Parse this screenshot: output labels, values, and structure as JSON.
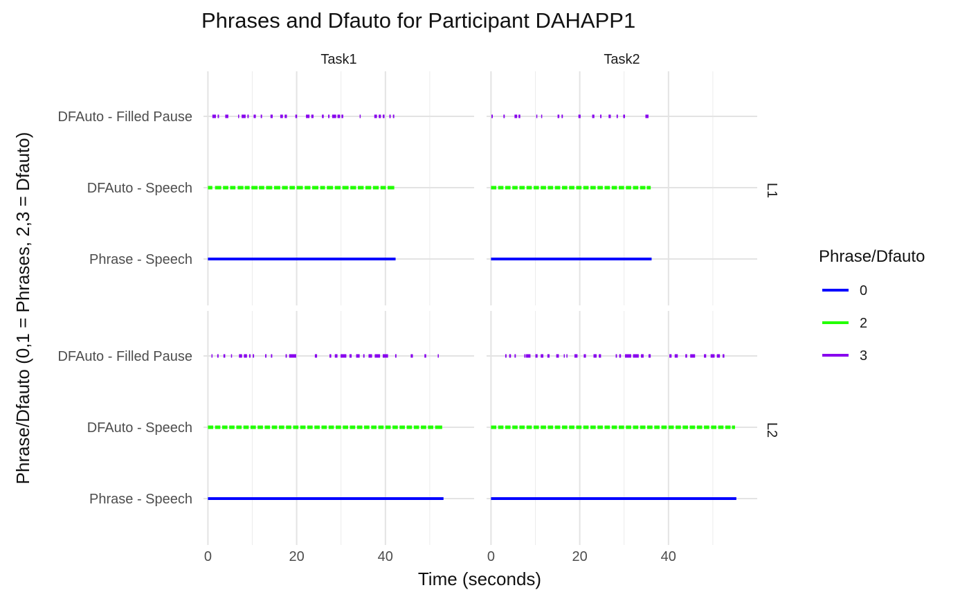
{
  "chart_data": {
    "type": "line",
    "title": "Phrases and Dfauto for Participant DAHAPP1",
    "xlabel": "Time (seconds)",
    "ylabel": "Phrase/Dfauto (0,1 = Phrases, 2,3 = Dfauto)",
    "xlim": [
      -1,
      60
    ],
    "x_ticks": [
      0,
      20,
      40
    ],
    "x_minor": [
      10,
      30,
      50
    ],
    "y_categories": [
      "Phrase - Speech",
      "DFAuto - Speech",
      "DFAuto - Filled Pause"
    ],
    "facet_columns": [
      "Task1",
      "Task2"
    ],
    "facet_rows": [
      "L1",
      "L2"
    ],
    "grid": true,
    "legend": {
      "title": "Phrase/Dfauto",
      "position": "right",
      "items": [
        {
          "label": "0",
          "color": "#0000FF"
        },
        {
          "label": "2",
          "color": "#22FF00"
        },
        {
          "label": "3",
          "color": "#8800EE"
        }
      ]
    },
    "panels": [
      {
        "column": "Task1",
        "row": "L1",
        "phrase_speech": [
          [
            0,
            42.3
          ]
        ],
        "dfauto_speech": [
          [
            0.0,
            1.0
          ],
          [
            1.6,
            3.0
          ],
          [
            3.4,
            4.6
          ],
          [
            5.0,
            6.2
          ],
          [
            6.7,
            8.0
          ],
          [
            8.3,
            9.4
          ],
          [
            9.8,
            11.2
          ],
          [
            11.5,
            12.7
          ],
          [
            13.1,
            14.5
          ],
          [
            14.9,
            16.3
          ],
          [
            16.7,
            18.0
          ],
          [
            18.4,
            19.6
          ],
          [
            20.0,
            21.4
          ],
          [
            21.8,
            23.1
          ],
          [
            23.5,
            24.9
          ],
          [
            25.3,
            26.4
          ],
          [
            26.8,
            28.2
          ],
          [
            28.6,
            29.9
          ],
          [
            30.3,
            31.7
          ],
          [
            32.1,
            33.4
          ],
          [
            33.8,
            35.1
          ],
          [
            35.5,
            36.8
          ],
          [
            37.2,
            38.5
          ],
          [
            38.9,
            40.1
          ],
          [
            40.5,
            42.0
          ]
        ],
        "dfauto_filled": [
          [
            1.0,
            1.8
          ],
          [
            2.2,
            2.5
          ],
          [
            3.9,
            4.6
          ],
          [
            6.8,
            7.0
          ],
          [
            7.6,
            8.5
          ],
          [
            8.9,
            9.2
          ],
          [
            10.3,
            10.8
          ],
          [
            11.9,
            12.2
          ],
          [
            14.1,
            14.6
          ],
          [
            16.3,
            16.9
          ],
          [
            17.3,
            17.8
          ],
          [
            19.7,
            20.1
          ],
          [
            22.1,
            22.9
          ],
          [
            23.3,
            23.8
          ],
          [
            25.7,
            26.1
          ],
          [
            27.1,
            27.4
          ],
          [
            28.0,
            28.9
          ],
          [
            29.2,
            29.8
          ],
          [
            30.1,
            30.5
          ],
          [
            34.2,
            34.4
          ],
          [
            37.5,
            38.1
          ],
          [
            38.5,
            39.0
          ],
          [
            39.4,
            39.8
          ],
          [
            40.9,
            41.2
          ],
          [
            41.7,
            42.0
          ]
        ]
      },
      {
        "column": "Task2",
        "row": "L1",
        "phrase_speech": [
          [
            0,
            36.2
          ]
        ],
        "dfauto_speech": [
          [
            0.0,
            1.2
          ],
          [
            1.6,
            2.8
          ],
          [
            3.2,
            4.4
          ],
          [
            4.8,
            6.0
          ],
          [
            6.4,
            7.6
          ],
          [
            8.0,
            9.2
          ],
          [
            9.6,
            10.8
          ],
          [
            11.2,
            12.4
          ],
          [
            12.8,
            14.0
          ],
          [
            14.4,
            15.6
          ],
          [
            16.0,
            17.2
          ],
          [
            17.6,
            18.8
          ],
          [
            19.2,
            20.4
          ],
          [
            20.8,
            22.0
          ],
          [
            22.4,
            23.6
          ],
          [
            24.0,
            25.2
          ],
          [
            25.6,
            26.8
          ],
          [
            27.2,
            28.4
          ],
          [
            28.8,
            30.0
          ],
          [
            30.4,
            31.6
          ],
          [
            32.0,
            33.2
          ],
          [
            33.6,
            34.8
          ],
          [
            35.1,
            36.0
          ]
        ],
        "dfauto_filled": [
          [
            0.1,
            0.4
          ],
          [
            2.8,
            3.1
          ],
          [
            5.3,
            5.9
          ],
          [
            6.2,
            6.6
          ],
          [
            10.2,
            10.4
          ],
          [
            11.3,
            11.5
          ],
          [
            15.0,
            15.4
          ],
          [
            15.9,
            16.2
          ],
          [
            19.7,
            20.2
          ],
          [
            22.8,
            23.3
          ],
          [
            24.6,
            24.9
          ],
          [
            26.5,
            27.0
          ],
          [
            28.3,
            28.6
          ],
          [
            29.8,
            30.2
          ],
          [
            34.8,
            35.5
          ]
        ]
      },
      {
        "column": "Task1",
        "row": "L2",
        "phrase_speech": [
          [
            0,
            53.1
          ]
        ],
        "dfauto_speech": [
          [
            0.0,
            1.2
          ],
          [
            1.6,
            2.8
          ],
          [
            3.2,
            4.4
          ],
          [
            4.8,
            6.0
          ],
          [
            6.4,
            7.6
          ],
          [
            8.0,
            9.2
          ],
          [
            9.6,
            10.8
          ],
          [
            11.2,
            12.4
          ],
          [
            12.8,
            14.0
          ],
          [
            14.4,
            15.6
          ],
          [
            16.0,
            17.2
          ],
          [
            17.6,
            18.8
          ],
          [
            19.2,
            20.4
          ],
          [
            20.8,
            22.0
          ],
          [
            22.4,
            23.6
          ],
          [
            24.0,
            25.2
          ],
          [
            25.6,
            26.8
          ],
          [
            27.2,
            28.4
          ],
          [
            28.8,
            30.0
          ],
          [
            30.4,
            31.6
          ],
          [
            32.0,
            33.2
          ],
          [
            33.6,
            34.8
          ],
          [
            35.2,
            36.4
          ],
          [
            36.8,
            38.0
          ],
          [
            38.4,
            39.6
          ],
          [
            40.0,
            41.2
          ],
          [
            41.6,
            42.8
          ],
          [
            43.2,
            44.4
          ],
          [
            44.8,
            46.0
          ],
          [
            46.4,
            47.6
          ],
          [
            48.0,
            49.2
          ],
          [
            49.6,
            50.8
          ],
          [
            51.2,
            52.8
          ]
        ],
        "dfauto_filled": [
          [
            0.8,
            1.0
          ],
          [
            2.1,
            2.4
          ],
          [
            3.5,
            3.9
          ],
          [
            5.2,
            5.4
          ],
          [
            7.0,
            7.7
          ],
          [
            8.1,
            8.8
          ],
          [
            9.3,
            9.6
          ],
          [
            10.1,
            10.4
          ],
          [
            12.9,
            13.2
          ],
          [
            14.2,
            14.5
          ],
          [
            17.5,
            17.8
          ],
          [
            18.3,
            19.9
          ],
          [
            24.1,
            24.6
          ],
          [
            27.4,
            27.8
          ],
          [
            28.6,
            29.2
          ],
          [
            29.9,
            31.2
          ],
          [
            31.9,
            32.4
          ],
          [
            33.4,
            34.2
          ],
          [
            35.0,
            35.3
          ],
          [
            36.2,
            37.0
          ],
          [
            37.6,
            38.8
          ],
          [
            39.4,
            40.6
          ],
          [
            42.2,
            42.5
          ],
          [
            45.7,
            46.2
          ],
          [
            48.8,
            49.2
          ],
          [
            51.8,
            52.0
          ]
        ]
      },
      {
        "column": "Task2",
        "row": "L2",
        "phrase_speech": [
          [
            0,
            55.3
          ]
        ],
        "dfauto_speech": [
          [
            0.0,
            1.2
          ],
          [
            1.6,
            2.8
          ],
          [
            3.2,
            4.4
          ],
          [
            4.8,
            6.0
          ],
          [
            6.4,
            7.6
          ],
          [
            8.0,
            9.2
          ],
          [
            9.6,
            10.8
          ],
          [
            11.2,
            12.4
          ],
          [
            12.8,
            14.0
          ],
          [
            14.4,
            15.6
          ],
          [
            16.0,
            17.2
          ],
          [
            17.6,
            18.8
          ],
          [
            19.2,
            20.4
          ],
          [
            20.8,
            22.0
          ],
          [
            22.4,
            23.6
          ],
          [
            24.0,
            25.2
          ],
          [
            25.6,
            26.8
          ],
          [
            27.2,
            28.4
          ],
          [
            28.8,
            30.0
          ],
          [
            30.4,
            31.6
          ],
          [
            32.0,
            33.2
          ],
          [
            33.6,
            34.8
          ],
          [
            35.2,
            36.4
          ],
          [
            36.8,
            38.0
          ],
          [
            38.4,
            39.6
          ],
          [
            40.0,
            41.2
          ],
          [
            41.6,
            42.8
          ],
          [
            43.2,
            44.4
          ],
          [
            44.8,
            46.0
          ],
          [
            46.4,
            47.6
          ],
          [
            48.0,
            49.2
          ],
          [
            49.6,
            50.8
          ],
          [
            51.2,
            52.4
          ],
          [
            52.8,
            54.0
          ],
          [
            54.3,
            55.0
          ]
        ],
        "dfauto_filled": [
          [
            3.2,
            3.5
          ],
          [
            4.1,
            4.5
          ],
          [
            5.3,
            5.6
          ],
          [
            7.5,
            7.8
          ],
          [
            7.9,
            8.9
          ],
          [
            10.0,
            10.5
          ],
          [
            11.2,
            11.8
          ],
          [
            12.7,
            13.2
          ],
          [
            14.7,
            15.3
          ],
          [
            16.4,
            16.6
          ],
          [
            17.0,
            17.2
          ],
          [
            18.8,
            19.5
          ],
          [
            20.9,
            21.4
          ],
          [
            23.1,
            23.8
          ],
          [
            24.3,
            24.8
          ],
          [
            28.1,
            28.4
          ],
          [
            28.9,
            29.3
          ],
          [
            30.2,
            31.6
          ],
          [
            32.0,
            33.3
          ],
          [
            33.8,
            34.4
          ],
          [
            35.5,
            36.0
          ],
          [
            40.2,
            40.7
          ],
          [
            41.4,
            42.1
          ],
          [
            43.8,
            44.2
          ],
          [
            44.9,
            46.0
          ],
          [
            48.0,
            48.5
          ],
          [
            49.5,
            50.4
          ],
          [
            50.9,
            51.6
          ],
          [
            52.2,
            52.6
          ]
        ]
      }
    ]
  }
}
